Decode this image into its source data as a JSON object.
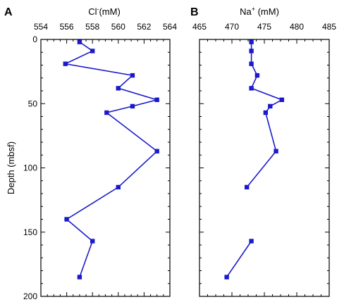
{
  "chart_data": [
    {
      "type": "line",
      "panel_label": "A",
      "title_main": "Cl",
      "title_sup": "-",
      "title_unit": "(mM)",
      "ylabel": "Depth (mbsf)",
      "xlim": [
        554,
        564
      ],
      "ylim": [
        200,
        0
      ],
      "x_ticks": [
        554,
        556,
        558,
        560,
        562,
        564
      ],
      "y_ticks": [
        0,
        50,
        100,
        150,
        200
      ],
      "series": [
        {
          "color": "#1a1acc",
          "points": [
            {
              "x": 557.0,
              "y": 2
            },
            {
              "x": 558.0,
              "y": 9
            },
            {
              "x": 555.9,
              "y": 19
            },
            {
              "x": 561.1,
              "y": 28
            },
            {
              "x": 560.0,
              "y": 38
            },
            {
              "x": 563.0,
              "y": 47
            },
            {
              "x": 561.1,
              "y": 52
            },
            {
              "x": 559.1,
              "y": 57
            },
            {
              "x": 563.0,
              "y": 87
            },
            {
              "x": 560.0,
              "y": 115
            },
            {
              "x": 556.0,
              "y": 140
            },
            {
              "x": 558.0,
              "y": 157
            },
            {
              "x": 557.0,
              "y": 185
            }
          ]
        }
      ],
      "segment_breaks": []
    },
    {
      "type": "line",
      "panel_label": "B",
      "title_main": "Na",
      "title_sup": "+",
      "title_unit": " (mM)",
      "ylabel": "",
      "xlim": [
        465,
        485
      ],
      "ylim": [
        200,
        0
      ],
      "x_ticks": [
        465,
        470,
        475,
        480,
        485
      ],
      "y_ticks": [
        0,
        50,
        100,
        150,
        200
      ],
      "series": [
        {
          "color": "#1a1acc",
          "points": [
            {
              "x": 473.0,
              "y": 2
            },
            {
              "x": 473.0,
              "y": 9
            },
            {
              "x": 473.0,
              "y": 19
            },
            {
              "x": 473.9,
              "y": 28
            },
            {
              "x": 473.0,
              "y": 38
            },
            {
              "x": 477.7,
              "y": 47
            },
            {
              "x": 475.9,
              "y": 52
            },
            {
              "x": 475.2,
              "y": 57
            },
            {
              "x": 476.8,
              "y": 87
            },
            {
              "x": 472.3,
              "y": 115
            },
            {
              "x": 473.0,
              "y": 157
            },
            {
              "x": 469.2,
              "y": 185
            }
          ]
        }
      ],
      "segment_breaks": [
        10
      ]
    }
  ]
}
